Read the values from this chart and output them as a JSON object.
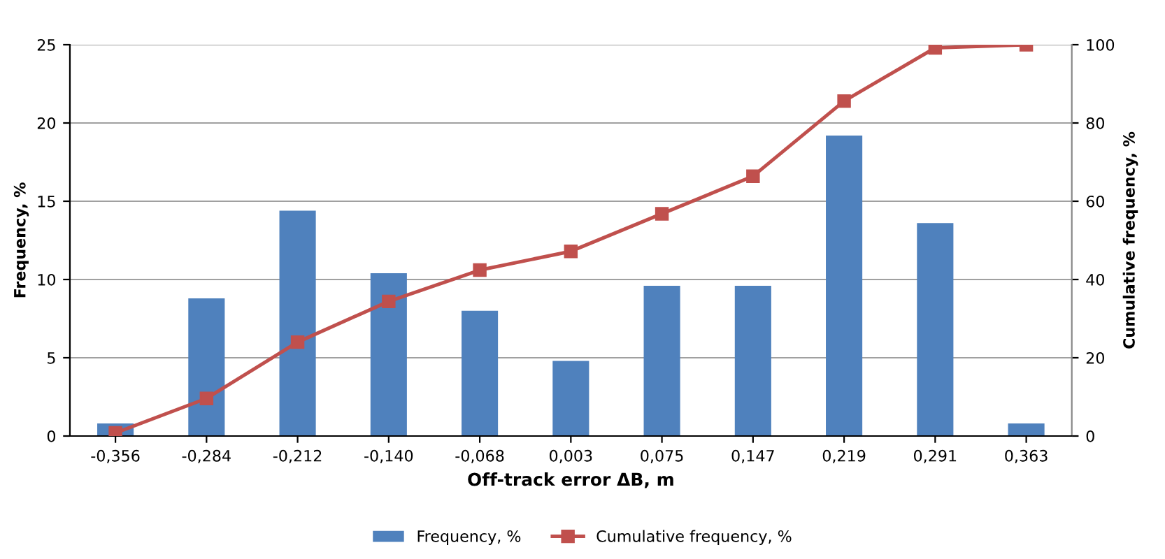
{
  "chart_data": {
    "type": "bar",
    "xlabel": "Off-track error ΔB, m",
    "ylabel": "Frequency, %",
    "y2label": "Cumulative frequency, %",
    "categories": [
      "-0,356",
      "-0,284",
      "-0,212",
      "-0,140",
      "-0,068",
      "0,003",
      "0,075",
      "0,147",
      "0,219",
      "0,291",
      "0,363"
    ],
    "series": [
      {
        "name": "Frequency, %",
        "color": "#4f81bd",
        "values": [
          0.8,
          8.8,
          14.4,
          10.4,
          8.0,
          4.8,
          9.6,
          9.6,
          19.2,
          13.6,
          0.8
        ]
      },
      {
        "name": "Cumulative frequency, %",
        "type": "line",
        "axis": "y2",
        "color": "#c0504d",
        "marker": "square",
        "line_style": "solid",
        "values": [
          0.8,
          9.6,
          24,
          34.4,
          42.4,
          47.2,
          56.8,
          66.4,
          85.6,
          99.2,
          100
        ]
      }
    ],
    "ylim": [
      0,
      25
    ],
    "yticks": [
      0,
      5,
      10,
      15,
      20,
      25
    ],
    "y2lim": [
      0,
      100
    ],
    "y2ticks": [
      0,
      20,
      40,
      60,
      80,
      100
    ],
    "grid": "y",
    "legend": "bottom"
  }
}
